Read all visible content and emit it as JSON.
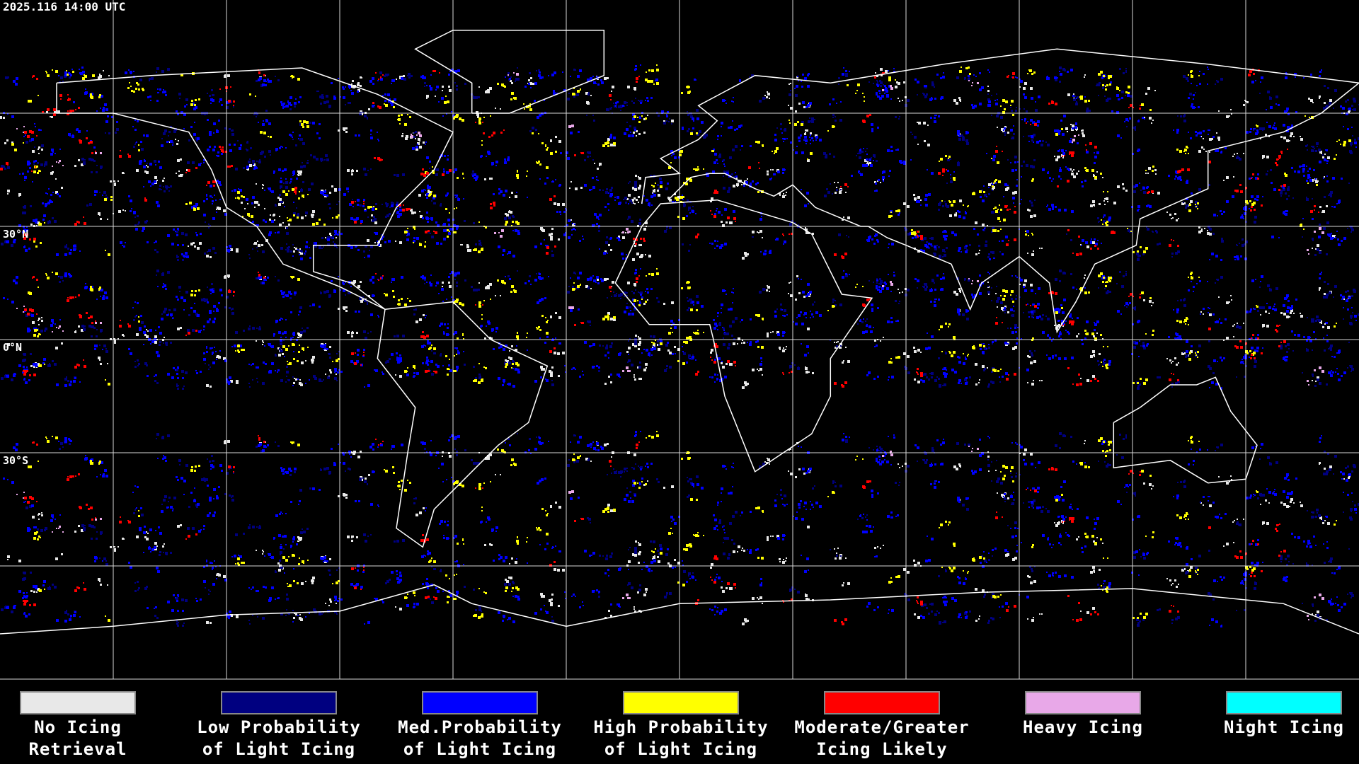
{
  "timestamp": "2025.116 14:00 UTC",
  "latitude_labels": [
    {
      "lat": 30,
      "label": "30°N"
    },
    {
      "lat": 0,
      "label": "0°N"
    },
    {
      "lat": -30,
      "label": "30°S"
    }
  ],
  "legend": [
    {
      "color": "#e8e8e8",
      "lines": [
        "No Icing",
        "Retrieval"
      ]
    },
    {
      "color": "#000080",
      "lines": [
        "Low Probability",
        "of Light Icing"
      ]
    },
    {
      "color": "#0000ff",
      "lines": [
        "Med.Probability",
        "of Light Icing"
      ]
    },
    {
      "color": "#ffff00",
      "lines": [
        "High Probability",
        "of Light Icing"
      ]
    },
    {
      "color": "#ff0000",
      "lines": [
        "Moderate/Greater",
        "Icing Likely"
      ]
    },
    {
      "color": "#e8a8e8",
      "lines": [
        "Heavy Icing"
      ]
    },
    {
      "color": "#00ffff",
      "lines": [
        "Night Icing"
      ]
    }
  ]
}
